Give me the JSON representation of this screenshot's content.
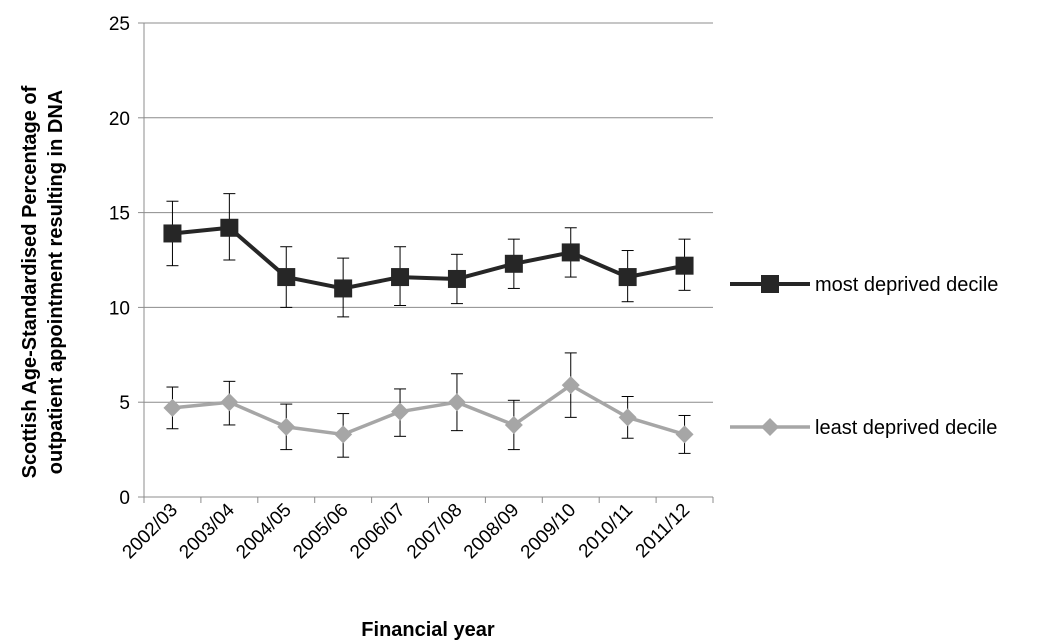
{
  "chart_data": {
    "type": "line",
    "title": "",
    "xlabel": "Financial year",
    "ylabel_lines": [
      "Scottish Age-Standardised Percentage of",
      "outpatient appointment resulting in DNA"
    ],
    "categories": [
      "2002/03",
      "2003/04",
      "2004/05",
      "2005/06",
      "2006/07",
      "2007/08",
      "2008/09",
      "2009/10",
      "2010/11",
      "2011/12"
    ],
    "ylim": [
      0,
      25
    ],
    "yticks": [
      0,
      5,
      10,
      15,
      20,
      25
    ],
    "grid": true,
    "legend_position": "right",
    "series": [
      {
        "name": "most deprived decile",
        "marker": "square",
        "color": "#262626",
        "values": [
          13.9,
          14.2,
          11.6,
          11.0,
          11.6,
          11.5,
          12.3,
          12.9,
          11.6,
          12.2
        ],
        "err_low": [
          12.2,
          12.5,
          10.0,
          9.5,
          10.1,
          10.2,
          11.0,
          11.6,
          10.3,
          10.9
        ],
        "err_high": [
          15.6,
          16.0,
          13.2,
          12.6,
          13.2,
          12.8,
          13.6,
          14.2,
          13.0,
          13.6
        ]
      },
      {
        "name": "least deprived decile",
        "marker": "diamond",
        "color": "#a6a6a6",
        "values": [
          4.7,
          5.0,
          3.7,
          3.3,
          4.5,
          5.0,
          3.8,
          5.9,
          4.2,
          3.3
        ],
        "err_low": [
          3.6,
          3.8,
          2.5,
          2.1,
          3.2,
          3.5,
          2.5,
          4.2,
          3.1,
          2.3
        ],
        "err_high": [
          5.8,
          6.1,
          4.9,
          4.4,
          5.7,
          6.5,
          5.1,
          7.6,
          5.3,
          4.3
        ]
      }
    ]
  }
}
